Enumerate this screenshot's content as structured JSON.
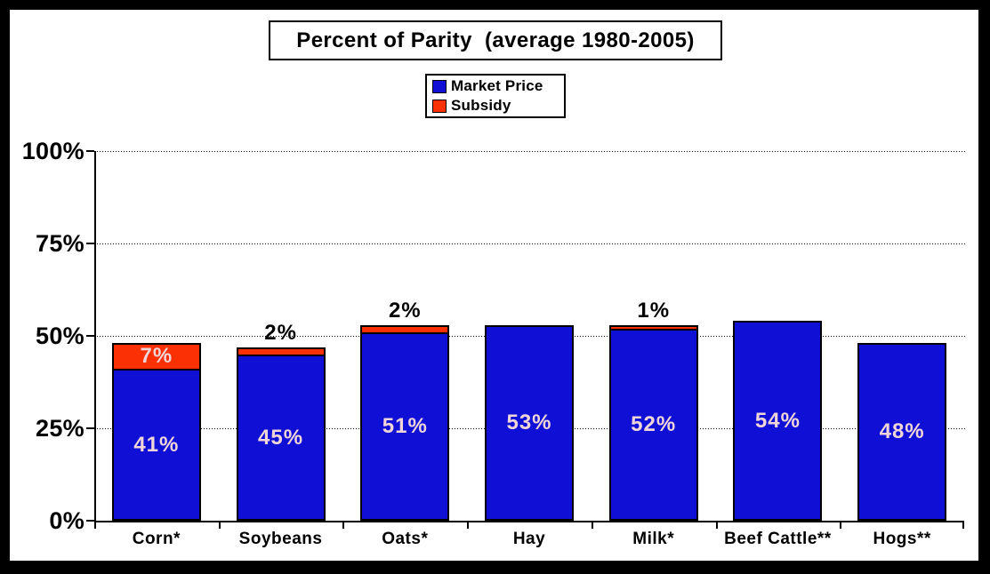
{
  "chart_data": {
    "type": "bar",
    "stacked": true,
    "title": "Percent of Parity  (average 1980-2005)",
    "categories": [
      "Corn*",
      "Soybeans",
      "Oats*",
      "Hay",
      "Milk*",
      "Beef Cattle**",
      "Hogs**"
    ],
    "series": [
      {
        "name": "Market Price",
        "color": "#0f0fd6",
        "values": [
          41,
          45,
          51,
          53,
          52,
          54,
          48
        ]
      },
      {
        "name": "Subsidy",
        "color": "#fb3005",
        "values": [
          7,
          2,
          2,
          0,
          1,
          0,
          0
        ]
      }
    ],
    "value_labels": {
      "market_price": [
        "41%",
        "45%",
        "51%",
        "53%",
        "52%",
        "54%",
        "48%"
      ],
      "subsidy": [
        "7%",
        "2%",
        "2%",
        "",
        "1%",
        "",
        ""
      ]
    },
    "totals": [
      48,
      47,
      53,
      53,
      53,
      54,
      48
    ],
    "y_axis": {
      "tick_labels": [
        "100%",
        "75%",
        "50%",
        "25%",
        "0%"
      ],
      "tick_values": [
        100,
        75,
        50,
        25,
        0
      ],
      "lim": [
        0,
        100
      ]
    },
    "grid": "horizontal-dotted",
    "legend_position": "top-center",
    "style": {
      "market_price_color": "#0f0fd6",
      "subsidy_color": "#fb3005",
      "value_label_color": "#f0d5d8",
      "subsidy_above_label_color": "#000000",
      "plot_background": "#ffffff",
      "outer_frame": "#000000"
    }
  }
}
